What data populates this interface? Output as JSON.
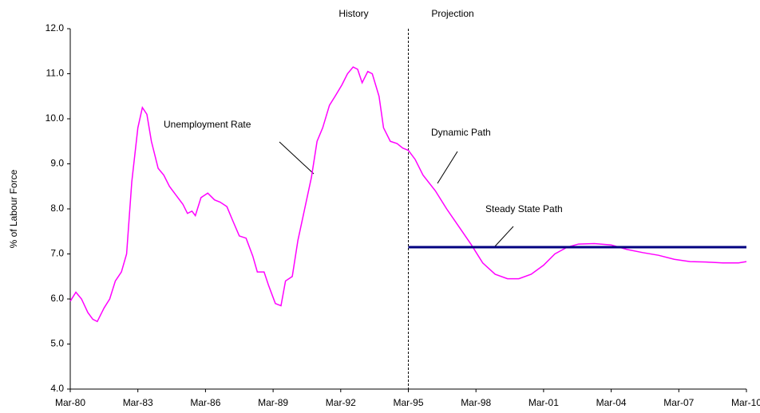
{
  "chart_data": {
    "type": "line",
    "y_label": "% of Labour Force",
    "annotations": [
      "History",
      "Projection"
    ],
    "divider_x": 1995,
    "xlim": [
      1980,
      2010
    ],
    "xticks": [
      {
        "value": 1980,
        "label": "Mar-80"
      },
      {
        "value": 1983,
        "label": "Mar-83"
      },
      {
        "value": 1986,
        "label": "Mar-86"
      },
      {
        "value": 1989,
        "label": "Mar-89"
      },
      {
        "value": 1992,
        "label": "Mar-92"
      },
      {
        "value": 1995,
        "label": "Mar-95"
      },
      {
        "value": 1998,
        "label": "Mar-98"
      },
      {
        "value": 2001,
        "label": "Mar-01"
      },
      {
        "value": 2004,
        "label": "Mar-04"
      },
      {
        "value": 2007,
        "label": "Mar-07"
      },
      {
        "value": 2010,
        "label": "Mar-10"
      }
    ],
    "ylim": [
      4,
      12
    ],
    "yticks": [
      {
        "value": 4,
        "label": "4.0"
      },
      {
        "value": 5,
        "label": "5.0"
      },
      {
        "value": 6,
        "label": "6.0"
      },
      {
        "value": 7,
        "label": "7.0"
      },
      {
        "value": 8,
        "label": "8.0"
      },
      {
        "value": 9,
        "label": "9.0"
      },
      {
        "value": 10,
        "label": "10.0"
      },
      {
        "value": 11,
        "label": "11.0"
      },
      {
        "value": 12,
        "label": "12.0"
      }
    ],
    "grid": false,
    "series": [
      {
        "name": "Unemployment Rate",
        "color": "#ff00ff",
        "x": [
          1980,
          1980.25,
          1980.5,
          1980.78,
          1981.0,
          1981.2,
          1981.5,
          1981.75,
          1982.0,
          1982.27,
          1982.5,
          1982.73,
          1983.0,
          1983.2,
          1983.4,
          1983.6,
          1983.9,
          1984.15,
          1984.4,
          1984.7,
          1985.0,
          1985.2,
          1985.4,
          1985.55,
          1985.8,
          1986.1,
          1986.4,
          1986.65,
          1986.95,
          1987.2,
          1987.5,
          1987.8,
          1988.1,
          1988.3,
          1988.6,
          1988.8,
          1989.1,
          1989.35,
          1989.55,
          1989.85,
          1990.1,
          1990.4,
          1990.7,
          1990.95,
          1991.2,
          1991.5,
          1991.75,
          1992.05,
          1992.3,
          1992.55,
          1992.75,
          1992.95,
          1993.2,
          1993.4,
          1993.7,
          1993.9,
          1994.2,
          1994.5,
          1994.75,
          1995
        ],
        "values": [
          5.95,
          6.15,
          6.0,
          5.7,
          5.55,
          5.5,
          5.8,
          6.0,
          6.4,
          6.6,
          7.0,
          8.6,
          9.8,
          10.25,
          10.1,
          9.5,
          8.9,
          8.75,
          8.5,
          8.3,
          8.1,
          7.9,
          7.95,
          7.85,
          8.25,
          8.35,
          8.2,
          8.15,
          8.05,
          7.75,
          7.4,
          7.35,
          6.95,
          6.6,
          6.6,
          6.3,
          5.9,
          5.85,
          6.4,
          6.5,
          7.3,
          8.0,
          8.7,
          9.5,
          9.8,
          10.3,
          10.5,
          10.75,
          11.0,
          11.15,
          11.1,
          10.8,
          11.05,
          11.0,
          10.5,
          9.8,
          9.5,
          9.45,
          9.35,
          9.3
        ]
      },
      {
        "name": "Dynamic Path",
        "color": "#ff00ff",
        "x": [
          1995,
          1995.3,
          1995.65,
          1996.2,
          1996.7,
          1997.25,
          1997.8,
          1998.3,
          1998.85,
          1999.4,
          1999.9,
          2000.45,
          2001.0,
          2001.5,
          2002.05,
          2002.55,
          2003.25,
          2004.0,
          2004.7,
          2005.4,
          2006.1,
          2006.8,
          2007.5,
          2008.2,
          2008.95,
          2009.65,
          2010
        ],
        "values": [
          9.3,
          9.1,
          8.75,
          8.4,
          8.0,
          7.6,
          7.2,
          6.8,
          6.55,
          6.45,
          6.45,
          6.55,
          6.75,
          7.0,
          7.15,
          7.22,
          7.23,
          7.2,
          7.1,
          7.03,
          6.97,
          6.88,
          6.83,
          6.82,
          6.8,
          6.8,
          6.83
        ]
      },
      {
        "name": "Steady State Path",
        "color": "#000080",
        "x": [
          1995,
          2010
        ],
        "values": [
          7.15,
          7.15
        ]
      }
    ]
  }
}
